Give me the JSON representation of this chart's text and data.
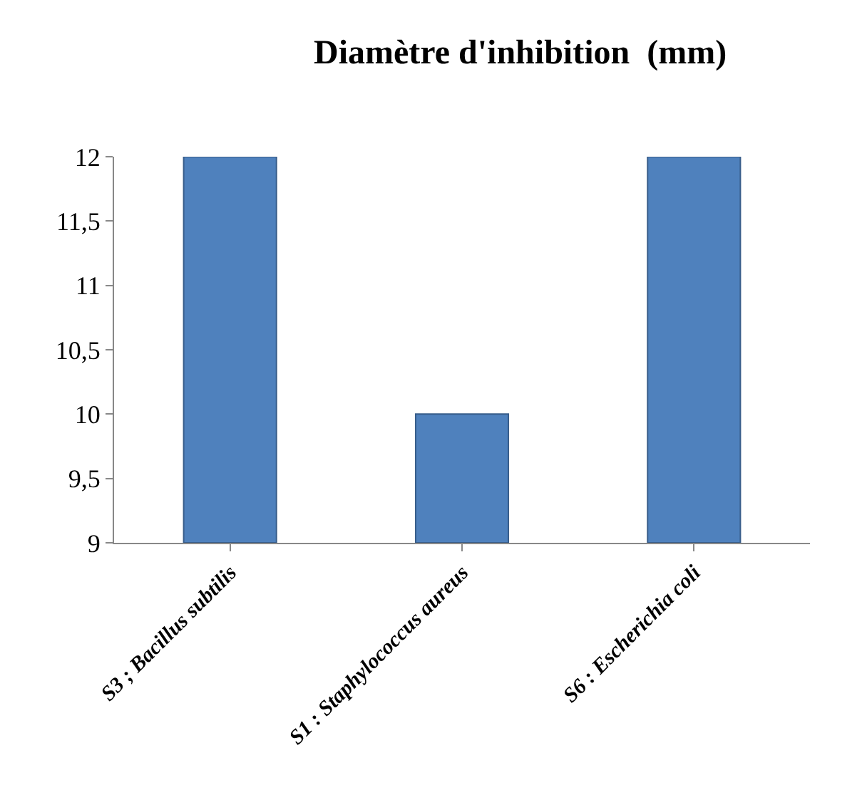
{
  "chart_data": {
    "type": "bar",
    "title": "Diamètre d'inhibition  (mm)",
    "categories": [
      "S3 ; Bacillus subtilis",
      "S1 : Staphylococcus aureus",
      "S6 : Escherichia coli"
    ],
    "values": [
      12,
      10,
      12
    ],
    "color": "#4f81bd",
    "ylim": [
      9,
      12
    ],
    "yticks": [
      9,
      {
        "value": 9.5,
        "label": "9,5"
      },
      10,
      {
        "value": 10.5,
        "label": "10,5"
      },
      11,
      {
        "value": 11.5,
        "label": "11,5"
      },
      12
    ],
    "legend": false
  }
}
